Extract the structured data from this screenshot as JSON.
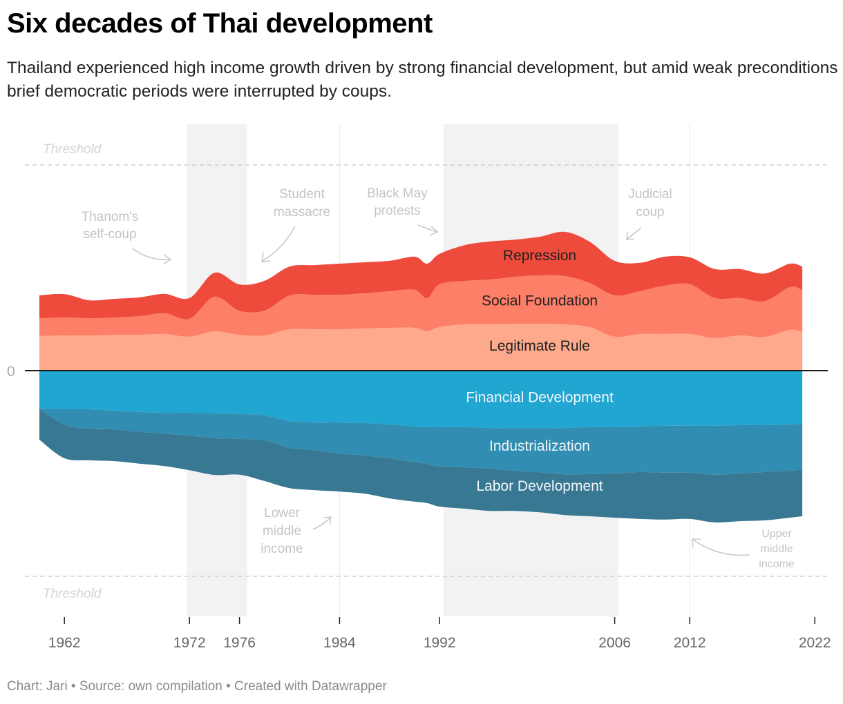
{
  "header": {
    "title": "Six decades of Thai development",
    "subtitle": "Thailand experienced high income growth driven by strong financial development, but amid weak preconditions brief democratic periods were interrupted by coups."
  },
  "footer": {
    "text": "Chart: Jari • Source: own compilation • Created with Datawrapper"
  },
  "chart_data": {
    "type": "area",
    "subtype": "diverging streamgraph (stacked area above and below zero)",
    "title": "Six decades of Thai development",
    "xlabel": "",
    "ylabel": "",
    "zero_label": "0",
    "xlim": [
      1958,
      2022.5
    ],
    "ylim": [
      -1.2,
      1.2
    ],
    "x_ticks": [
      1962,
      1972,
      1976,
      1984,
      1992,
      2006,
      2012,
      2022
    ],
    "gridlines_x": [
      1984,
      2012
    ],
    "thresholds": [
      {
        "value": 1.0,
        "label": "Threshold"
      },
      {
        "value": -1.0,
        "label": "Threshold"
      }
    ],
    "shaded_periods": [
      {
        "from": 1971.8,
        "to": 1976.6
      },
      {
        "from": 1992.3,
        "to": 2006.3
      }
    ],
    "x": [
      1960,
      1962,
      1964,
      1966,
      1968,
      1970,
      1972,
      1974,
      1976,
      1978,
      1980,
      1982,
      1984,
      1986,
      1988,
      1990,
      1991,
      1992,
      1994,
      1996,
      1998,
      2000,
      2002,
      2004,
      2006,
      2008,
      2010,
      2012,
      2014,
      2016,
      2018,
      2020,
      2021
    ],
    "series": [
      {
        "name": "Legitimate Rule",
        "side": "positive",
        "color": "#fea98b",
        "values": [
          0.168,
          0.171,
          0.171,
          0.174,
          0.174,
          0.178,
          0.165,
          0.191,
          0.174,
          0.171,
          0.201,
          0.201,
          0.201,
          0.205,
          0.208,
          0.208,
          0.191,
          0.212,
          0.225,
          0.225,
          0.228,
          0.228,
          0.225,
          0.211,
          0.165,
          0.178,
          0.178,
          0.178,
          0.158,
          0.171,
          0.164,
          0.198,
          0.188
        ]
      },
      {
        "name": "Social Foundation",
        "side": "positive",
        "color": "#fe7f67",
        "values": [
          0.087,
          0.087,
          0.084,
          0.084,
          0.091,
          0.101,
          0.087,
          0.168,
          0.117,
          0.121,
          0.164,
          0.168,
          0.168,
          0.171,
          0.178,
          0.185,
          0.161,
          0.208,
          0.211,
          0.218,
          0.228,
          0.235,
          0.235,
          0.215,
          0.201,
          0.208,
          0.235,
          0.242,
          0.195,
          0.182,
          0.174,
          0.208,
          0.204
        ]
      },
      {
        "name": "Repression",
        "side": "positive",
        "color": "#ef4b3c",
        "values": [
          0.111,
          0.114,
          0.087,
          0.091,
          0.091,
          0.094,
          0.101,
          0.117,
          0.128,
          0.145,
          0.141,
          0.144,
          0.151,
          0.151,
          0.148,
          0.161,
          0.168,
          0.148,
          0.174,
          0.185,
          0.181,
          0.188,
          0.215,
          0.201,
          0.168,
          0.138,
          0.141,
          0.131,
          0.141,
          0.141,
          0.134,
          0.114,
          0.114
        ]
      },
      {
        "name": "Financial Development",
        "side": "negative",
        "color": "#21a5d1",
        "values": [
          0.185,
          0.188,
          0.188,
          0.195,
          0.201,
          0.205,
          0.205,
          0.208,
          0.211,
          0.218,
          0.245,
          0.252,
          0.252,
          0.255,
          0.262,
          0.272,
          0.275,
          0.275,
          0.275,
          0.279,
          0.279,
          0.279,
          0.279,
          0.275,
          0.275,
          0.272,
          0.268,
          0.268,
          0.268,
          0.265,
          0.265,
          0.262,
          0.258
        ]
      },
      {
        "name": "Industrialization",
        "side": "negative",
        "color": "#318db1",
        "values": [
          0.0,
          0.074,
          0.094,
          0.091,
          0.097,
          0.101,
          0.111,
          0.121,
          0.121,
          0.121,
          0.131,
          0.134,
          0.151,
          0.158,
          0.164,
          0.174,
          0.178,
          0.191,
          0.195,
          0.198,
          0.208,
          0.215,
          0.225,
          0.228,
          0.225,
          0.221,
          0.228,
          0.228,
          0.238,
          0.235,
          0.228,
          0.225,
          0.222
        ]
      },
      {
        "name": "Labor Development",
        "side": "negative",
        "color": "#387893",
        "values": [
          0.151,
          0.164,
          0.154,
          0.154,
          0.154,
          0.158,
          0.168,
          0.178,
          0.174,
          0.198,
          0.195,
          0.195,
          0.185,
          0.185,
          0.195,
          0.191,
          0.191,
          0.195,
          0.201,
          0.205,
          0.195,
          0.195,
          0.198,
          0.205,
          0.215,
          0.228,
          0.228,
          0.225,
          0.232,
          0.232,
          0.235,
          0.228,
          0.228
        ]
      }
    ],
    "series_labels": [
      {
        "name": "Repression",
        "x": 2000,
        "y": 0.56
      },
      {
        "name": "Social Foundation",
        "x": 2000,
        "y": 0.34
      },
      {
        "name": "Legitimate Rule",
        "x": 2000,
        "y": 0.12
      },
      {
        "name": "Financial Development",
        "x": 2000,
        "y": -0.13
      },
      {
        "name": "Industrialization",
        "x": 2000,
        "y": -0.365
      },
      {
        "name": "Labor Development",
        "x": 2000,
        "y": -0.56
      }
    ],
    "annotations": [
      {
        "id": "thanom",
        "lines": [
          "Thanom's",
          "self-coup"
        ]
      },
      {
        "id": "student",
        "lines": [
          "Student",
          "massacre"
        ]
      },
      {
        "id": "blackmay",
        "lines": [
          "Black May",
          "protests"
        ]
      },
      {
        "id": "judicial",
        "lines": [
          "Judicial",
          "coup"
        ]
      },
      {
        "id": "lower",
        "lines": [
          "Lower",
          "middle",
          "income"
        ]
      },
      {
        "id": "upper",
        "lines": [
          "Upper",
          "middle",
          "income"
        ]
      }
    ]
  }
}
